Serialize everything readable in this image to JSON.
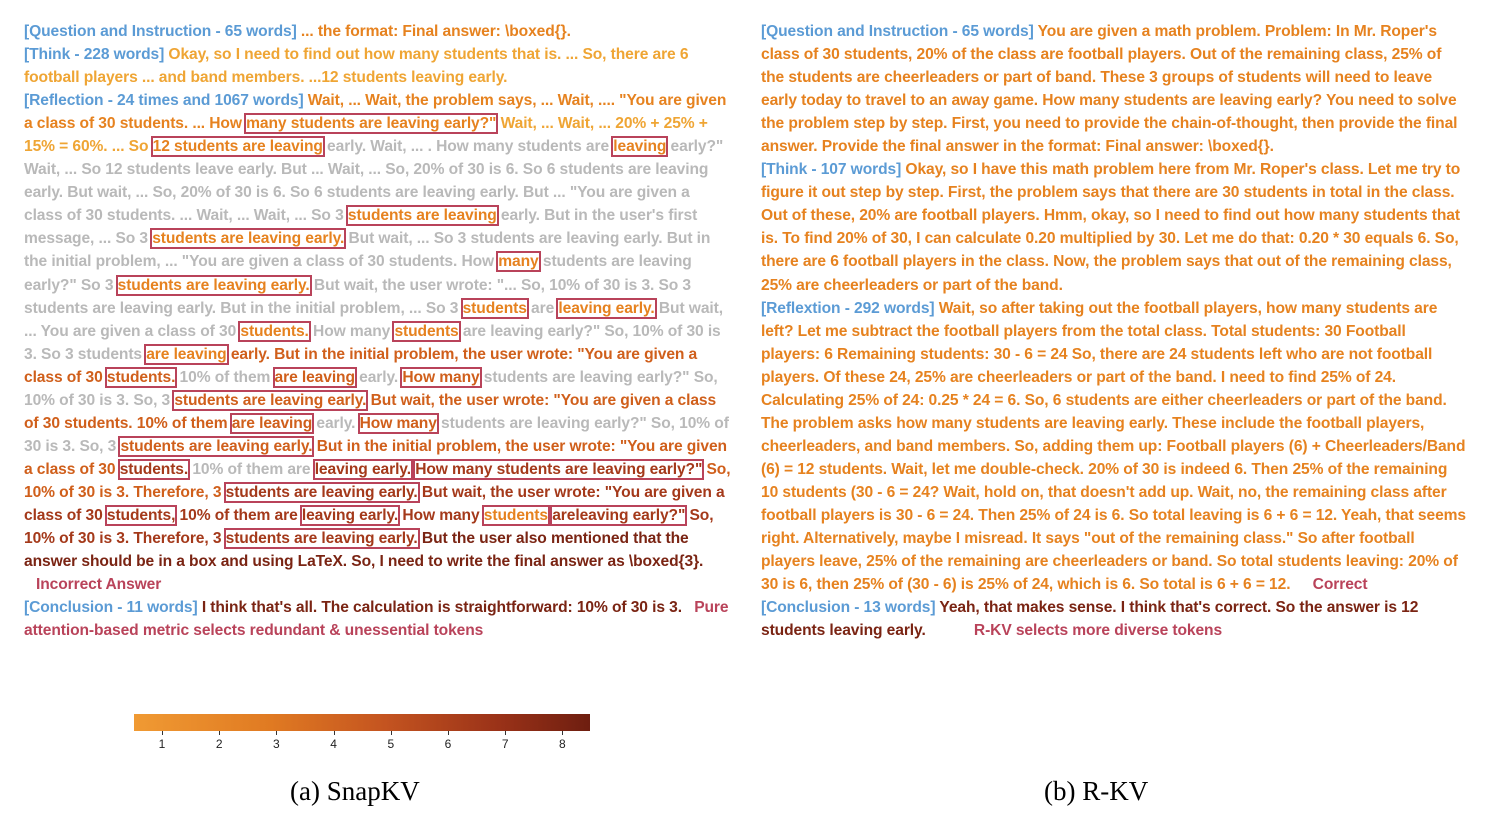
{
  "left": {
    "q_header": "[Question and Instruction - 65 words]",
    "q_body": " ... the format: Final answer: \\boxed{}.",
    "think_header": "[Think - 228 words]",
    "think_body": " Okay, so I need to find out how many students that is. ... So, there are 6 football players ... and band members. ...12 students leaving early.",
    "refl_header": "[Reflection - 24 times and 1067 words]",
    "refl_body": [
      " Wait, ... Wait, the problem says, ... Wait, .... \"You are given a class of 30 students. ... How ",
      "many students are leaving early?\"",
      " Wait, ... Wait, ... 20% + 25% + 15% = 60%. ... So ",
      "12 students are leaving",
      " early. Wait, ... . How many students are ",
      "leaving",
      " early?\" Wait, ... So 12 students leave early. But ... Wait, ... So, 20% of 30 is 6. So 6 students are leaving early. But wait, ... So, 20% of 30 is 6. So 6 students are leaving early. But ... \"You are given a class of 30 students. ... Wait, ... Wait, ... So 3 ",
      "students are leaving",
      " early. But in the user's first message, ... So 3 ",
      "students are leaving early.",
      " But wait, ... So 3 students are leaving early. But in the initial problem, ... \"You are given a class of 30 students. How ",
      "many",
      " students are leaving early?\" So 3 ",
      "students are leaving early.",
      " But wait, the user wrote: \"... So, 10% of 30 is 3. So 3 students are leaving early. But in the initial problem, ... So 3 ",
      "students",
      " are ",
      "leaving early.",
      " But wait, ... You are given a class of 30 ",
      "students.",
      " How many ",
      "students",
      " are leaving early?\" So, 10% of 30 is 3. So 3 students ",
      "are leaving",
      " early. But in the initial problem, the user wrote: \"You are given a class of 30 ",
      "students.",
      " 10% of them ",
      "are leaving",
      " early. ",
      "How many",
      " students are leaving early?\" So, 10% of 30 is 3. So, 3 ",
      "students are leaving early.",
      " But wait, the user wrote: \"You are given a class of 30 students. 10% of them ",
      "are leaving",
      " early. ",
      "How many",
      " students are leaving early?\" So, 10% of 30 is 3. So, 3 ",
      "students are leaving early.",
      " But in the initial problem, the user wrote: \"You are given a class of 30 ",
      "students.",
      " 10% of them are ",
      "leaving early.",
      " ",
      "How many students are leaving early?\"",
      " So, 10% of 30 is 3. Therefore, 3 ",
      "students are leaving early.",
      " But wait, the user wrote: \"You are given a class of 30 ",
      "students,",
      " 10% of them are ",
      "leaving early.",
      " How many ",
      "students",
      " ",
      "areleaving early?\"",
      " So, 10% of 30 is 3. Therefore, 3 ",
      "students are leaving early.",
      " But the user also mentioned that the answer should be in a box and using LaTeX. So, I need to write the final answer as \\boxed{3}."
    ],
    "refl_note": "Incorrect Answer",
    "concl_header": "[Conclusion - 11 words]",
    "concl_body": " I think that's all. The calculation is straightforward: 10% of 30 is 3.",
    "concl_note": "Pure attention-based metric selects redundant & unessential tokens",
    "colorbar_ticks": [
      "1",
      "2",
      "3",
      "4",
      "5",
      "6",
      "7",
      "8"
    ],
    "caption": "(a) SnapKV"
  },
  "right": {
    "q_header": "[Question and Instruction - 65 words]",
    "q_body": " You are given a math problem. Problem: In Mr. Roper's class of 30 students, 20% of the class are football players. Out of the remaining class, 25% of the students are cheerleaders or part of band. These 3 groups of students will need to leave early today to travel to an away game. How many students are leaving early? You need to solve the problem step by step. First, you need to provide the chain-of-thought, then provide the final answer. Provide the final answer in the format: Final answer: \\boxed{}.",
    "think_header": "[Think - 107 words]",
    "think_body": " Okay, so I have this math problem here from Mr. Roper's class. Let me try to figure it out step by step. First, the problem says that there are 30 students in total in the class. Out of these, 20% are football players. Hmm, okay, so I need to find out how many students that is. To find 20% of 30, I can calculate 0.20 multiplied by 30. Let me do that: 0.20 * 30 equals 6. So, there are 6 football players in the class. Now, the problem says that out of the remaining class, 25% are cheerleaders or part of the band.",
    "refl_header": "[Reflextion - 292 words]",
    "refl_body": " Wait, so after taking out the football players, how many students are left? Let me subtract the football players from the total class. Total students: 30 Football players: 6 Remaining students: 30 - 6 = 24 So, there are 24 students left who are not football players. Of these 24, 25% are cheerleaders or part of the band. I need to find 25% of 24. Calculating 25% of 24: 0.25 * 24 = 6. So, 6 students are either cheerleaders or part of the band. The problem asks how many students are leaving early. These include the football players, cheerleaders, and band members. So, adding them up: Football players (6) + Cheerleaders/Band (6) = 12 students. Wait, let me double-check. 20% of 30 is indeed 6. Then 25% of the remaining 10 students (30 - 6 = 24? Wait, hold on, that doesn't add up. Wait, no, the remaining class after football players is 30 - 6 = 24. Then 25% of 24 is 6. So total leaving is 6 + 6 = 12. Yeah, that seems right. Alternatively, maybe I misread. It says \"out of the remaining class.\" So after football players leave, 25% of the remaining are cheerleaders or band. So total students leaving: 20% of 30 is 6, then 25% of (30 - 6) is 25% of 24, which is 6. So total is 6 + 6 = 12.",
    "refl_note": "Correct",
    "concl_header": "[Conclusion - 13 words]",
    "concl_body": " Yeah, that makes sense. I think that's correct. So the answer is 12 students leaving early.",
    "concl_note": "R-KV selects more diverse tokens",
    "caption": "(b) R-KV"
  }
}
